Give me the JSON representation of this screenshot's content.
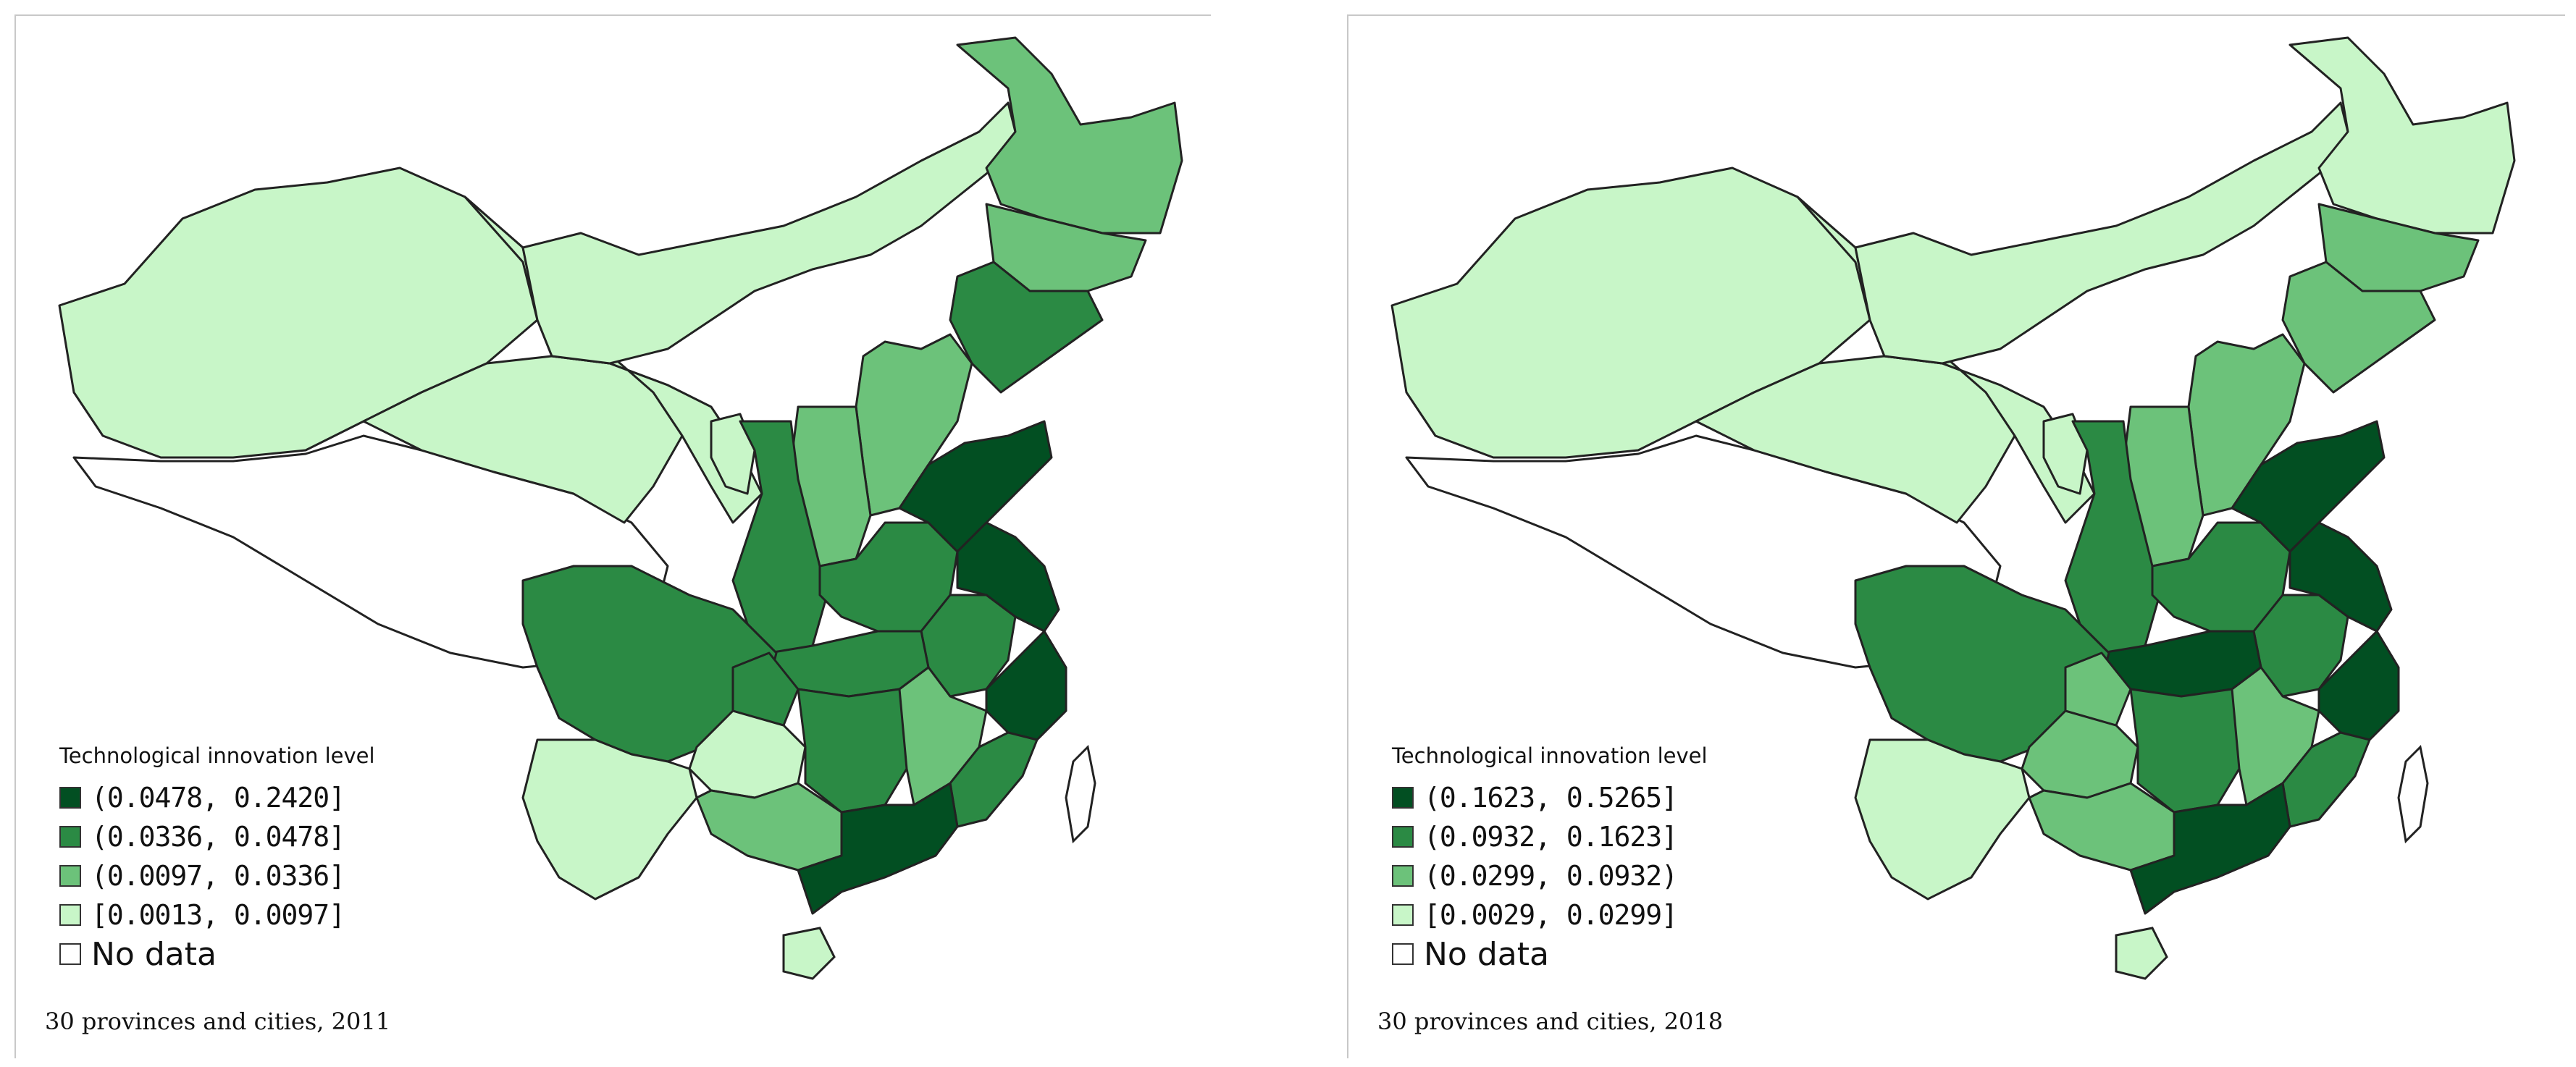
{
  "colors": {
    "class1": "#024f22",
    "class2": "#2b8a44",
    "class3": "#6cc27a",
    "class4": "#c8f6c8",
    "nodata": "#ffffff"
  },
  "maps": [
    {
      "legend_title": "Technological innovation level",
      "legend_items": [
        {
          "label": "(0.0478, 0.2420]",
          "color": "#024f22"
        },
        {
          "label": "(0.0336, 0.0478]",
          "color": "#2b8a44"
        },
        {
          "label": "(0.0097, 0.0336]",
          "color": "#6cc27a"
        },
        {
          "label": "[0.0013, 0.0097]",
          "color": "#c8f6c8"
        },
        {
          "label": "No data",
          "color": "#ffffff"
        }
      ],
      "caption": "30 provinces and cities, 2011",
      "province_class": {
        "xinjiang": 4,
        "tibet": 0,
        "qinghai": 4,
        "gansu": 4,
        "inner_mongolia": 4,
        "heilongjiang": 3,
        "jilin": 3,
        "liaoning": 2,
        "beijing": 1,
        "hebei": 3,
        "shanxi": 3,
        "shaanxi": 2,
        "ningxia": 4,
        "henan": 2,
        "shandong": 1,
        "jiangsu": 1,
        "anhui": 2,
        "hubei": 2,
        "sichuan": 2,
        "chongqing": 2,
        "guizhou": 4,
        "yunnan": 4,
        "hunan": 2,
        "jiangxi": 3,
        "zhejiang": 1,
        "fujian": 2,
        "guangdong": 1,
        "guangxi": 3,
        "hainan": 4,
        "taiwan": 0
      }
    },
    {
      "legend_title": "Technological innovation level",
      "legend_items": [
        {
          "label": "(0.1623, 0.5265]",
          "color": "#024f22"
        },
        {
          "label": "(0.0932, 0.1623]",
          "color": "#2b8a44"
        },
        {
          "label": "(0.0299, 0.0932)",
          "color": "#6cc27a"
        },
        {
          "label": "[0.0029, 0.0299]",
          "color": "#c8f6c8"
        },
        {
          "label": "No data",
          "color": "#ffffff"
        }
      ],
      "caption": "30 provinces and cities, 2018",
      "province_class": {
        "xinjiang": 4,
        "tibet": 0,
        "qinghai": 4,
        "gansu": 4,
        "inner_mongolia": 4,
        "heilongjiang": 4,
        "jilin": 3,
        "liaoning": 3,
        "beijing": 1,
        "hebei": 3,
        "shanxi": 3,
        "shaanxi": 2,
        "ningxia": 4,
        "henan": 2,
        "shandong": 1,
        "jiangsu": 1,
        "anhui": 2,
        "hubei": 1,
        "sichuan": 2,
        "chongqing": 3,
        "guizhou": 3,
        "yunnan": 4,
        "hunan": 2,
        "jiangxi": 3,
        "zhejiang": 1,
        "fujian": 2,
        "guangdong": 1,
        "guangxi": 3,
        "hainan": 4,
        "taiwan": 0
      }
    }
  ]
}
